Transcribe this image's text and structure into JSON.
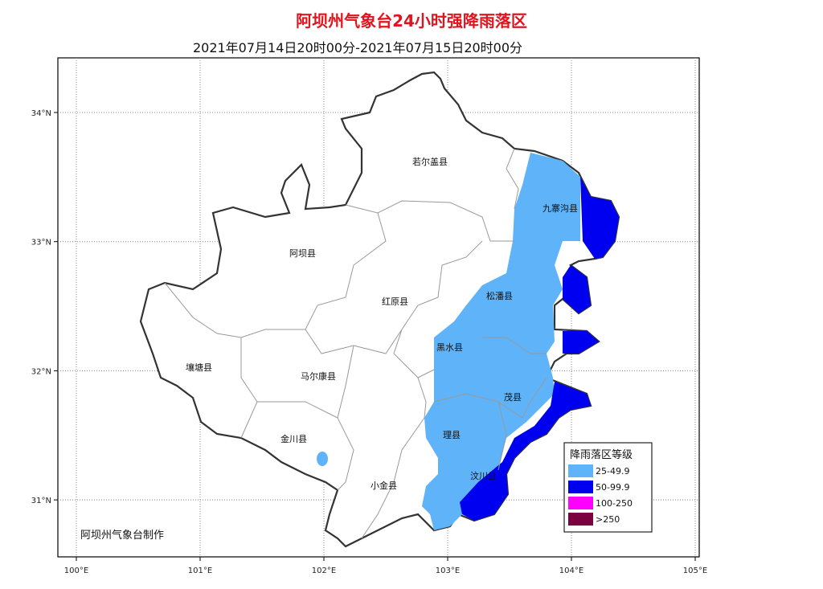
{
  "title": "阿坝州气象台24小时强降雨落区",
  "subtitle": "2021年07月14日20时00分-2021年07月15日20时00分",
  "credit": "阿坝州气象台制作",
  "axes": {
    "lon_ticks": [
      "100°E",
      "101°E",
      "102°E",
      "103°E",
      "104°E",
      "105°E"
    ],
    "lat_ticks": [
      "34°N",
      "33°N",
      "32°N",
      "31°N"
    ],
    "grid": "dotted"
  },
  "counties": [
    "若尔盖县",
    "九寨沟县",
    "阿坝县",
    "红原县",
    "松潘县",
    "黑水县",
    "壤塘县",
    "马尔康县",
    "茂县",
    "金川县",
    "理县",
    "汶川县",
    "小金县"
  ],
  "legend": {
    "title": "降雨落区等级",
    "items": [
      {
        "label": "25-49.9",
        "color": "#5fb4f9"
      },
      {
        "label": "50-99.9",
        "color": "#0000f0"
      },
      {
        "label": "100-250",
        "color": "#ff00ff"
      },
      {
        "label": ">250",
        "color": "#7a0040"
      }
    ]
  }
}
